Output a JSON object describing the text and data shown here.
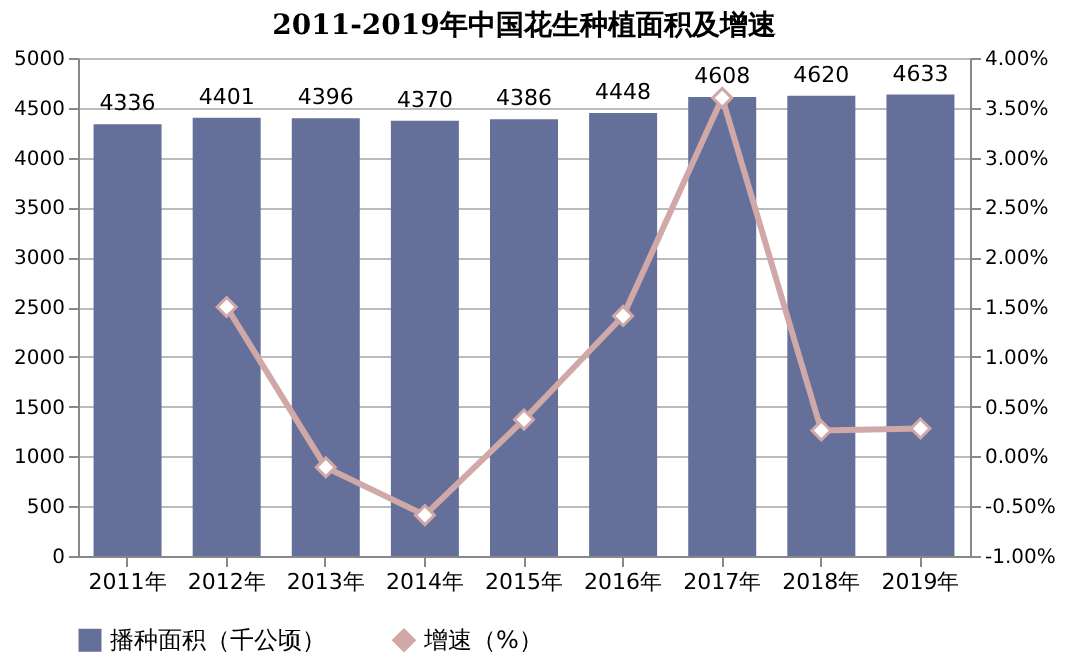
{
  "chart_data": {
    "type": "bar",
    "title": "2011-2019年中国花生种植面积及增速",
    "categories": [
      "2011年",
      "2012年",
      "2013年",
      "2014年",
      "2015年",
      "2016年",
      "2017年",
      "2018年",
      "2019年"
    ],
    "series": [
      {
        "name": "播种面积（千公顷）",
        "color": "#65709a",
        "values": [
          4336,
          4401,
          4396,
          4370,
          4386,
          4448,
          4608,
          4620,
          4633
        ],
        "value_labels": [
          "4336",
          "4401",
          "4396",
          "4370",
          "4386",
          "4448",
          "4608",
          "4620",
          "4633"
        ]
      },
      {
        "name": "增速（%）",
        "type": "line",
        "axis": "y2",
        "color": "#d0a8a8",
        "marker": "diamond",
        "line_style": "solid",
        "values": [
          null,
          1.5,
          -0.11,
          -0.59,
          0.37,
          1.41,
          3.6,
          0.26,
          0.28
        ]
      }
    ],
    "ylim": [
      0,
      5000
    ],
    "yticks": [
      0,
      500,
      1000,
      1500,
      2000,
      2500,
      3000,
      3500,
      4000,
      4500,
      5000
    ],
    "y2lim": [
      -1,
      4
    ],
    "y2ticks": [
      {
        "value": -1,
        "label": "-1.00%"
      },
      {
        "value": -0.5,
        "label": "-0.50%"
      },
      {
        "value": 0,
        "label": "0.00%"
      },
      {
        "value": 0.5,
        "label": "0.50%"
      },
      {
        "value": 1,
        "label": "1.00%"
      },
      {
        "value": 1.5,
        "label": "1.50%"
      },
      {
        "value": 2,
        "label": "2.00%"
      },
      {
        "value": 2.5,
        "label": "2.50%"
      },
      {
        "value": 3,
        "label": "3.00%"
      },
      {
        "value": 3.5,
        "label": "3.50%"
      },
      {
        "value": 4,
        "label": "4.00%"
      }
    ],
    "grid": "y",
    "legend": "bottom"
  }
}
